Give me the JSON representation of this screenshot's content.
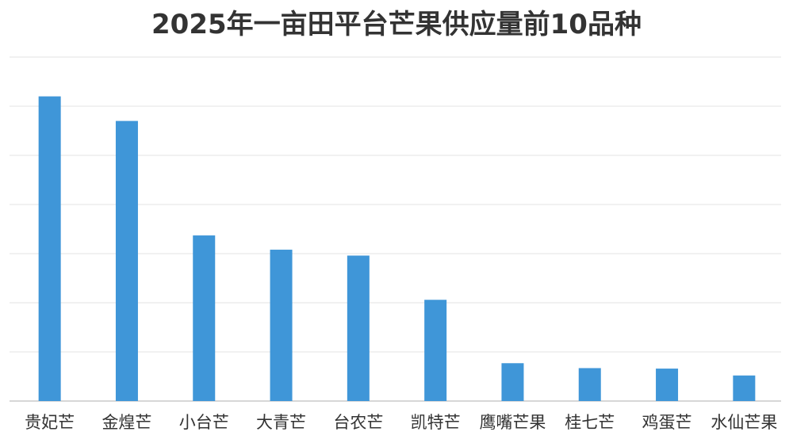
{
  "chart_data": {
    "type": "bar",
    "title": "2025年一亩田平台芒果供应量前10品种",
    "xlabel": "",
    "ylabel": "",
    "categories": [
      "贵妃芒",
      "金煌芒",
      "小台芒",
      "大青芒",
      "台农芒",
      "凯特芒",
      "鹰嘴芒果",
      "桂七芒",
      "鸡蛋芒",
      "水仙芒果"
    ],
    "values": [
      6.2,
      5.7,
      3.37,
      3.08,
      2.96,
      2.06,
      0.77,
      0.67,
      0.66,
      0.52
    ],
    "ylim": [
      0,
      7
    ],
    "yticks_shown": false,
    "grid": true,
    "legend": "none",
    "colors": {
      "bar": "#3f96d8",
      "grid": "#e3e3e3",
      "axis": "#bfbfbf",
      "title": "#333333",
      "label": "#333333"
    }
  }
}
